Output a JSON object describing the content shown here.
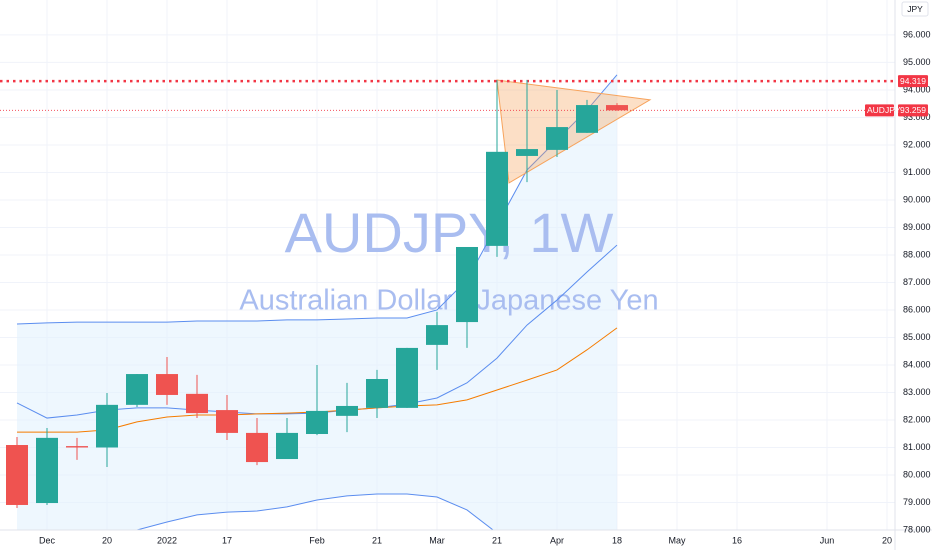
{
  "chart_data": {
    "type": "candlestick",
    "title": "AUDJPY, 1W",
    "subtitle": "Australian Dollar / Japanese Yen",
    "currency": "JPY",
    "categories": [
      null,
      "Dec",
      null,
      "20",
      null,
      "2022",
      null,
      "17",
      null,
      null,
      "Feb",
      null,
      "21",
      null,
      "Mar",
      null,
      "21",
      null,
      "Apr",
      null,
      "18",
      null,
      "May",
      null,
      "16",
      null,
      null,
      "Jun",
      null,
      "20"
    ],
    "open": [
      81.09,
      78.98,
      81.05,
      81.0,
      82.55,
      83.67,
      82.95,
      82.36,
      81.53,
      80.58,
      81.49,
      82.15,
      82.44,
      82.44,
      84.73,
      85.56,
      88.33,
      91.6,
      91.82,
      92.44,
      93.45,
      null,
      null,
      null,
      null,
      null,
      null,
      null,
      null,
      null
    ],
    "high": [
      81.38,
      81.71,
      81.35,
      82.98,
      83.67,
      84.29,
      83.64,
      82.91,
      82.07,
      82.07,
      84.0,
      83.35,
      83.82,
      84.62,
      85.93,
      88.29,
      94.36,
      94.36,
      94.0,
      93.64,
      93.52,
      null,
      null,
      null,
      null,
      null,
      null,
      null,
      null,
      null
    ],
    "low": [
      78.8,
      78.91,
      80.55,
      80.29,
      82.47,
      82.55,
      82.07,
      81.27,
      80.36,
      80.58,
      81.45,
      81.56,
      82.07,
      82.44,
      83.82,
      84.62,
      87.93,
      90.65,
      91.56,
      92.44,
      93.24,
      null,
      null,
      null,
      null,
      null,
      null,
      null,
      null,
      null
    ],
    "close": [
      78.91,
      81.35,
      81.0,
      82.55,
      83.67,
      82.91,
      82.25,
      81.53,
      80.47,
      81.53,
      82.33,
      82.51,
      83.49,
      84.62,
      85.45,
      88.29,
      91.75,
      91.85,
      92.65,
      93.45,
      93.26,
      null,
      null,
      null,
      null,
      null,
      null,
      null,
      null,
      null
    ],
    "up_color": "#26a69a",
    "down_color": "#ef5350",
    "ylim": [
      78,
      97.27
    ],
    "yticks": [
      {
        "value": 78,
        "label": "78.000"
      },
      {
        "value": 79,
        "label": "79.000"
      },
      {
        "value": 80,
        "label": "80.000"
      },
      {
        "value": 81,
        "label": "81.000"
      },
      {
        "value": 82,
        "label": "82.000"
      },
      {
        "value": 83,
        "label": "83.000"
      },
      {
        "value": 84,
        "label": "84.000"
      },
      {
        "value": 85,
        "label": "85.000"
      },
      {
        "value": 86,
        "label": "86.000"
      },
      {
        "value": 87,
        "label": "87.000"
      },
      {
        "value": 88,
        "label": "88.000"
      },
      {
        "value": 89,
        "label": "89.000"
      },
      {
        "value": 90,
        "label": "90.000"
      },
      {
        "value": 91,
        "label": "91.000"
      },
      {
        "value": 92,
        "label": "92.000"
      },
      {
        "value": 93,
        "label": "93.000"
      },
      {
        "value": 94,
        "label": "94.000"
      },
      {
        "value": 95,
        "label": "95.000"
      },
      {
        "value": 96,
        "label": "96.000"
      }
    ],
    "grid": true,
    "band_fill": "#e3f2fd",
    "overlays": [
      {
        "color": "#5b8def",
        "values": [
          85.49,
          85.53,
          85.56,
          85.56,
          85.56,
          85.56,
          85.6,
          85.6,
          85.6,
          85.64,
          85.64,
          85.67,
          85.71,
          85.71,
          86.0,
          87.09,
          89.09,
          91.09,
          92.18,
          93.27,
          94.55,
          null,
          null,
          null,
          null,
          null,
          null,
          null,
          null,
          null
        ]
      },
      {
        "color": "#5b8def",
        "values": [
          82.62,
          82.07,
          82.18,
          82.36,
          82.44,
          82.44,
          82.36,
          82.29,
          82.22,
          82.22,
          82.25,
          82.36,
          82.44,
          82.58,
          82.8,
          83.35,
          84.25,
          85.45,
          86.36,
          87.38,
          88.36,
          null,
          null,
          null,
          null,
          null,
          null,
          null,
          null,
          null
        ]
      },
      {
        "color": "#5b8def",
        "values": [
          null,
          null,
          null,
          null,
          78.0,
          78.29,
          78.55,
          78.65,
          78.69,
          78.84,
          79.09,
          79.24,
          79.31,
          79.31,
          79.2,
          78.73,
          77.89,
          null,
          null,
          null,
          null,
          null,
          null,
          null,
          null,
          null,
          null,
          null,
          null,
          null
        ]
      },
      {
        "color": "#f57c00",
        "values": [
          81.56,
          81.56,
          81.56,
          81.64,
          81.93,
          82.11,
          82.18,
          82.18,
          82.22,
          82.25,
          82.29,
          82.36,
          82.44,
          82.51,
          82.55,
          82.73,
          83.09,
          83.45,
          83.82,
          84.55,
          85.35,
          null,
          null,
          null,
          null,
          null,
          null,
          null,
          null,
          null
        ]
      }
    ],
    "pattern": {
      "color": "#f7a35c",
      "points": [
        {
          "x": 16,
          "y": 94.36
        },
        {
          "x": 21.1,
          "y": 93.64
        },
        {
          "x": 16.4,
          "y": 90.62
        }
      ]
    },
    "price_lines": [
      {
        "value": 94.319,
        "color": "#f23645",
        "style": "dotted"
      },
      {
        "name": "AUDJPY",
        "value": 93.259,
        "color": "#f23645",
        "style": "thin"
      }
    ]
  }
}
